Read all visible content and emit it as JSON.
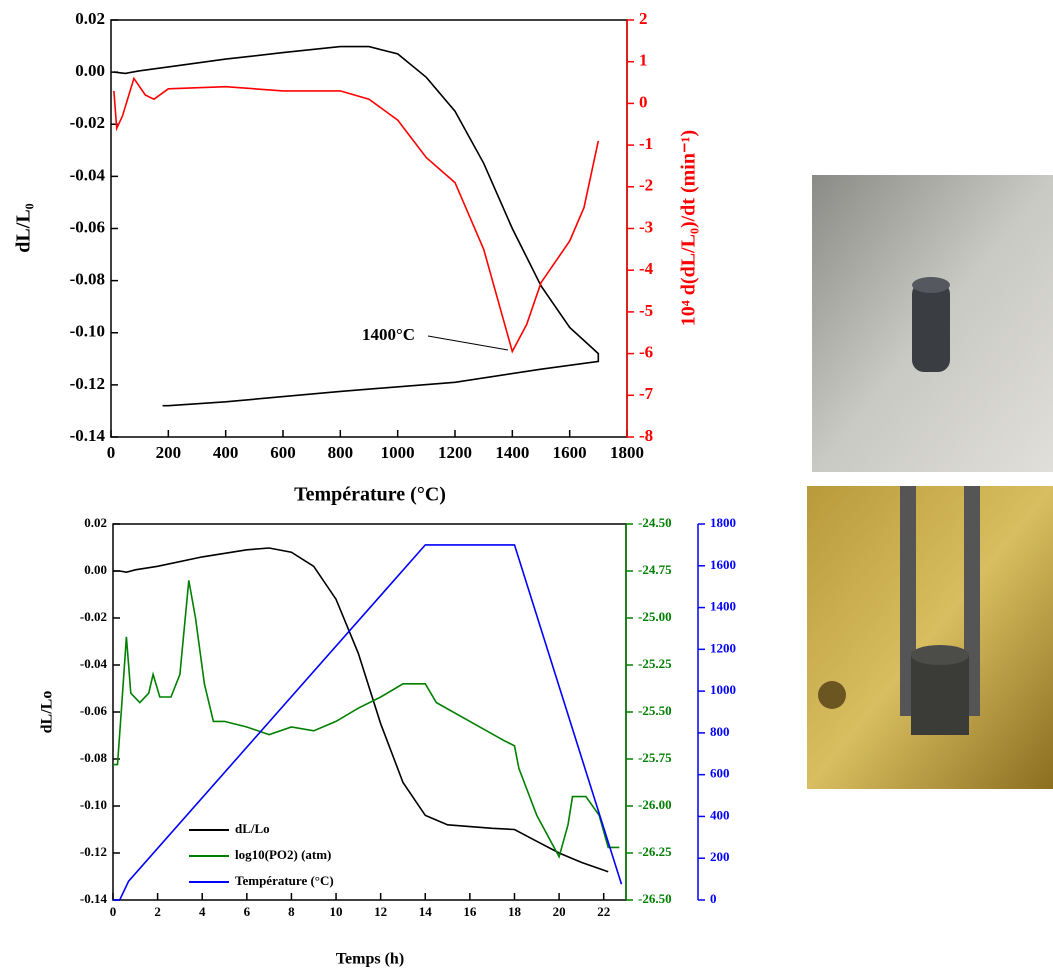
{
  "chart_data": [
    {
      "type": "line",
      "xlabel": "Température (°C)",
      "ylabel": "dL/L₀",
      "y2label": "10⁴ d(dL/L₀)/dt (min⁻¹)",
      "annotation": "1400°C",
      "xlim": [
        0,
        1800
      ],
      "xticks": [
        0,
        200,
        400,
        600,
        800,
        1000,
        1200,
        1400,
        1600,
        1800
      ],
      "ylim": [
        -0.14,
        0.02
      ],
      "yticks": [
        -0.14,
        -0.12,
        {
          "value": -0.1,
          "label": "-0.10"
        },
        -0.08,
        -0.06,
        -0.04,
        -0.02,
        {
          "value": 0,
          "label": "0.00"
        },
        0.02
      ],
      "y2lim": [
        -8,
        2
      ],
      "y2ticks": [
        -8,
        -7,
        -6,
        -5,
        -4,
        -3,
        -2,
        -1,
        0,
        1,
        2
      ],
      "y2color": "#ff0000",
      "series": [
        {
          "color": "#000000",
          "x": [
            10,
            50,
            100,
            200,
            400,
            600,
            800,
            900,
            1000,
            1100,
            1200,
            1300,
            1400,
            1500,
            1600,
            1680,
            1700,
            1700,
            1500,
            1200,
            800,
            400,
            200,
            180
          ],
          "values": [
            0,
            -0.0005,
            0.0005,
            0.002,
            0.005,
            0.0075,
            0.0098,
            0.0098,
            0.007,
            -0.002,
            -0.015,
            -0.035,
            -0.06,
            -0.082,
            -0.098,
            -0.106,
            -0.108,
            -0.111,
            -0.114,
            -0.119,
            -0.1225,
            -0.1265,
            -0.128,
            -0.128
          ]
        },
        {
          "color": "#ff0000",
          "axis": "y2",
          "x": [
            10,
            20,
            40,
            80,
            120,
            150,
            200,
            400,
            600,
            800,
            900,
            1000,
            1100,
            1200,
            1300,
            1400,
            1450,
            1500,
            1600,
            1650,
            1700
          ],
          "values": [
            0.3,
            -0.6,
            -0.3,
            0.6,
            0.2,
            0.1,
            0.35,
            0.4,
            0.3,
            0.3,
            0.1,
            -0.4,
            -1.3,
            -1.9,
            -3.5,
            -5.95,
            -5.3,
            -4.3,
            -3.3,
            -2.5,
            -0.9
          ]
        }
      ]
    },
    {
      "type": "line",
      "xlabel": "Temps (h)",
      "ylabel": "dL/Lo",
      "legend": "lower left",
      "xlim": [
        0,
        23
      ],
      "xticks": [
        0,
        2,
        4,
        6,
        8,
        10,
        12,
        14,
        16,
        18,
        20,
        22
      ],
      "ylim": [
        -0.14,
        0.02
      ],
      "yticks": [
        -0.14,
        -0.12,
        {
          "value": -0.1,
          "label": "-0.10"
        },
        -0.08,
        -0.06,
        -0.04,
        -0.02,
        {
          "value": 0,
          "label": "0.00"
        },
        0.02
      ],
      "y2lim": [
        -26.5,
        -24.5
      ],
      "y2ticks": [
        {
          "value": -26.5,
          "label": "-26.50"
        },
        -26.25,
        {
          "value": -26,
          "label": "-26.00"
        },
        -25.75,
        {
          "value": -25.5,
          "label": "-25.50"
        },
        -25.25,
        {
          "value": -25,
          "label": "-25.00"
        },
        -24.75,
        {
          "value": -24.5,
          "label": "-24.50"
        }
      ],
      "y2color": "#008000",
      "y3lim": [
        0,
        1800
      ],
      "y3ticks": [
        0,
        200,
        400,
        600,
        800,
        1000,
        1200,
        1400,
        1600,
        1800
      ],
      "y3color": "#0000ff",
      "series": [
        {
          "name": "dL/Lo",
          "color": "#000000",
          "x": [
            0,
            0.3,
            0.6,
            1,
            2,
            4,
            6,
            7,
            8,
            9,
            10,
            11,
            12,
            13,
            14,
            15,
            17,
            18,
            19,
            20,
            21,
            22.2
          ],
          "values": [
            0,
            0,
            -0.0005,
            0.0005,
            0.002,
            0.006,
            0.009,
            0.0098,
            0.008,
            0.002,
            -0.012,
            -0.035,
            -0.065,
            -0.09,
            -0.104,
            -0.108,
            -0.1095,
            -0.11,
            -0.115,
            -0.12,
            -0.124,
            -0.128
          ]
        },
        {
          "name": "log10(PO2) (atm)",
          "color": "#008000",
          "axis": "y2",
          "x": [
            0,
            0.2,
            0.4,
            0.6,
            0.8,
            1.2,
            1.6,
            1.8,
            2.1,
            2.6,
            3.0,
            3.4,
            3.7,
            4.1,
            4.5,
            5,
            6,
            7,
            8,
            9,
            10,
            11,
            12,
            13,
            14,
            14.5,
            16,
            17.5,
            18,
            18.2,
            19,
            20,
            20.4,
            20.6,
            21.2,
            21.8,
            22.2,
            22.7
          ],
          "values": [
            -25.78,
            -25.78,
            -25.45,
            -25.1,
            -25.4,
            -25.45,
            -25.4,
            -25.3,
            -25.42,
            -25.42,
            -25.3,
            -24.8,
            -25.0,
            -25.35,
            -25.55,
            -25.55,
            -25.58,
            -25.62,
            -25.58,
            -25.6,
            -25.55,
            -25.48,
            -25.42,
            -25.35,
            -25.35,
            -25.45,
            -25.55,
            -25.65,
            -25.68,
            -25.8,
            -26.05,
            -26.27,
            -26.1,
            -25.95,
            -25.95,
            -26.05,
            -26.22,
            -26.22
          ]
        },
        {
          "name": "Température (°C)",
          "color": "#0000ff",
          "axis": "y3",
          "x": [
            0,
            0.3,
            0.7,
            14,
            18,
            22.8
          ],
          "values": [
            0,
            0,
            90,
            1700,
            1700,
            75
          ]
        }
      ]
    }
  ]
}
